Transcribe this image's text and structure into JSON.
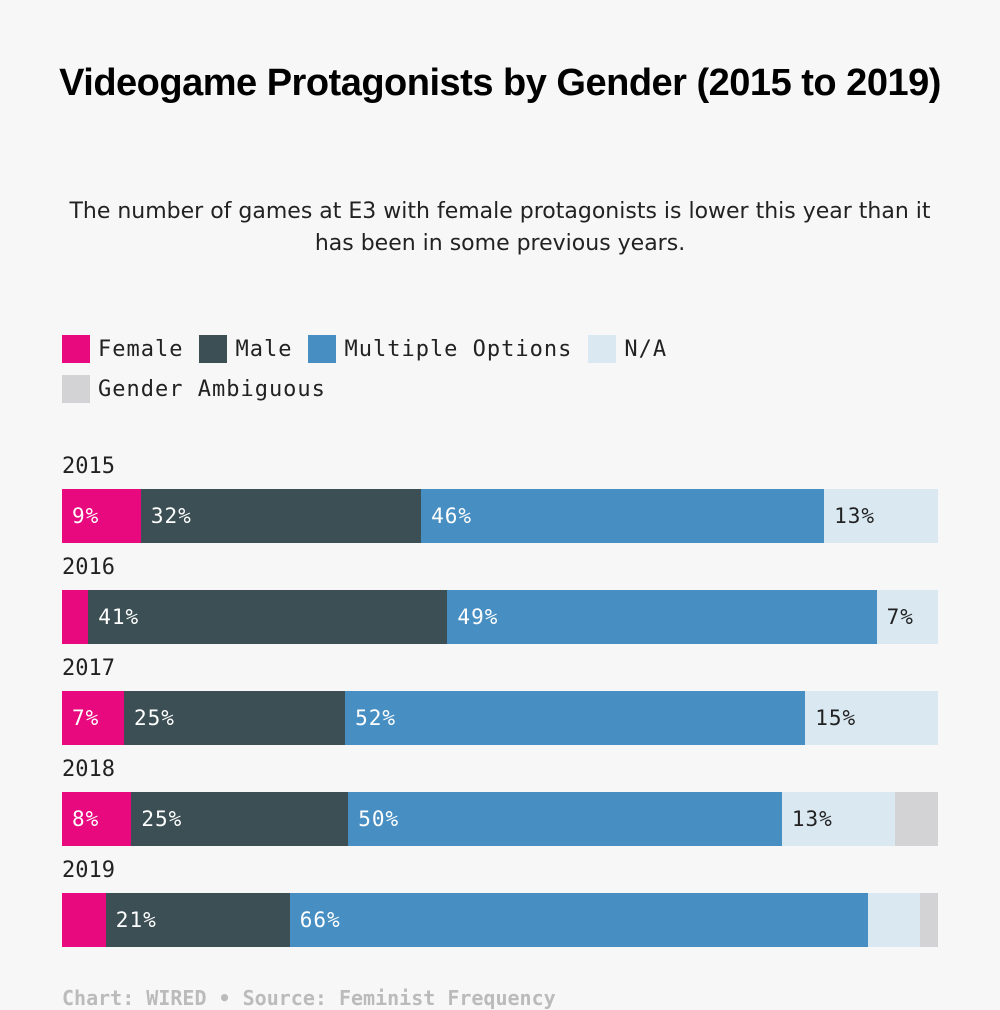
{
  "chart_data": {
    "type": "bar",
    "orientation": "horizontal-stacked",
    "title": "Videogame Protagonists by Gender (2015 to 2019)",
    "subtitle": "The number of games at E3 with female protagonists is lower this year than it has been in some previous years.",
    "footer": "Chart: WIRED • Source: Feminist Frequency",
    "categories": [
      "2015",
      "2016",
      "2017",
      "2018",
      "2019"
    ],
    "series": [
      {
        "name": "Female",
        "color": "#e8097e",
        "text_color": "#ffffff",
        "values": [
          9,
          3,
          7,
          8,
          5
        ],
        "labels": [
          "9%",
          "",
          "7%",
          "8%",
          ""
        ]
      },
      {
        "name": "Male",
        "color": "#3c4f54",
        "text_color": "#ffffff",
        "values": [
          32,
          41,
          25,
          25,
          21
        ],
        "labels": [
          "32%",
          "41%",
          "25%",
          "25%",
          "21%"
        ]
      },
      {
        "name": "Multiple Options",
        "color": "#478fc3",
        "text_color": "#ffffff",
        "values": [
          46,
          49,
          52,
          50,
          66
        ],
        "labels": [
          "46%",
          "49%",
          "52%",
          "50%",
          "66%"
        ]
      },
      {
        "name": "N/A",
        "color": "#d9e8f1",
        "text_color": "#222222",
        "values": [
          13,
          7,
          15,
          13,
          6
        ],
        "labels": [
          "13%",
          "7%",
          "15%",
          "13%",
          ""
        ]
      },
      {
        "name": "Gender Ambiguous",
        "color": "#d3d3d5",
        "text_color": "#222222",
        "values": [
          0,
          0,
          0,
          5,
          2
        ],
        "labels": [
          "",
          "",
          "",
          "",
          ""
        ]
      }
    ],
    "xlim": [
      0,
      100
    ],
    "legend_position": "top-left"
  }
}
